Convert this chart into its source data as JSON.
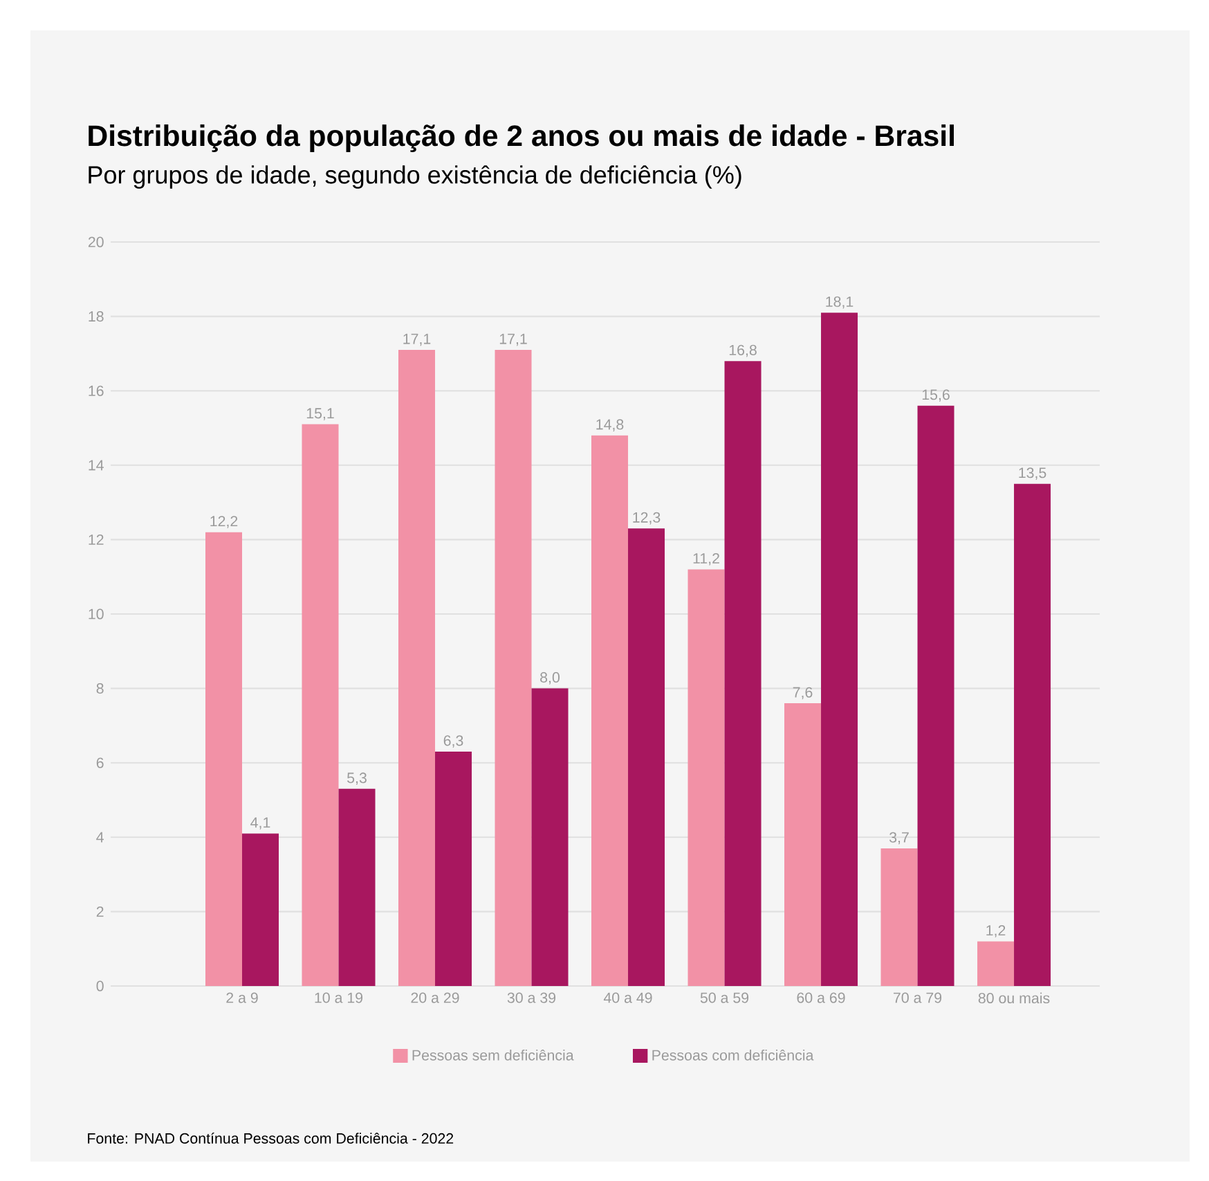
{
  "chart_data": {
    "type": "bar",
    "title": "Distribuição da população de 2 anos ou mais de idade - Brasil",
    "subtitle": "Por grupos de idade, segundo existência de deficiência (%)",
    "categories": [
      "2 a 9",
      "10 a 19",
      "20 a 29",
      "30 a 39",
      "40 a 49",
      "50 a 59",
      "60 a 69",
      "70 a 79",
      "80 ou mais"
    ],
    "series": [
      {
        "name": "Pessoas sem deficiência",
        "color": "#f291a6",
        "values": [
          12.2,
          15.1,
          17.1,
          17.1,
          14.8,
          11.2,
          7.6,
          3.7,
          1.2
        ],
        "value_labels": [
          "12,2",
          "15,1",
          "17,1",
          "17,1",
          "14,8",
          "11,2",
          "7,6",
          "3,7",
          "1,2"
        ]
      },
      {
        "name": "Pessoas com deficiência",
        "color": "#a8175f",
        "values": [
          4.1,
          5.3,
          6.3,
          8.0,
          12.3,
          16.8,
          18.1,
          15.6,
          13.5
        ],
        "value_labels": [
          "4,1",
          "5,3",
          "6,3",
          "8,0",
          "12,3",
          "16,8",
          "18,1",
          "15,6",
          "13,5"
        ]
      }
    ],
    "ylim": [
      0,
      20
    ],
    "yticks": [
      0,
      2,
      4,
      6,
      8,
      10,
      12,
      14,
      16,
      18,
      20
    ],
    "grid": "y",
    "legend": "bottom",
    "annotations": [
      "Fonte: PNAD Contínua Pessoas com Deficiência - 2022"
    ]
  }
}
